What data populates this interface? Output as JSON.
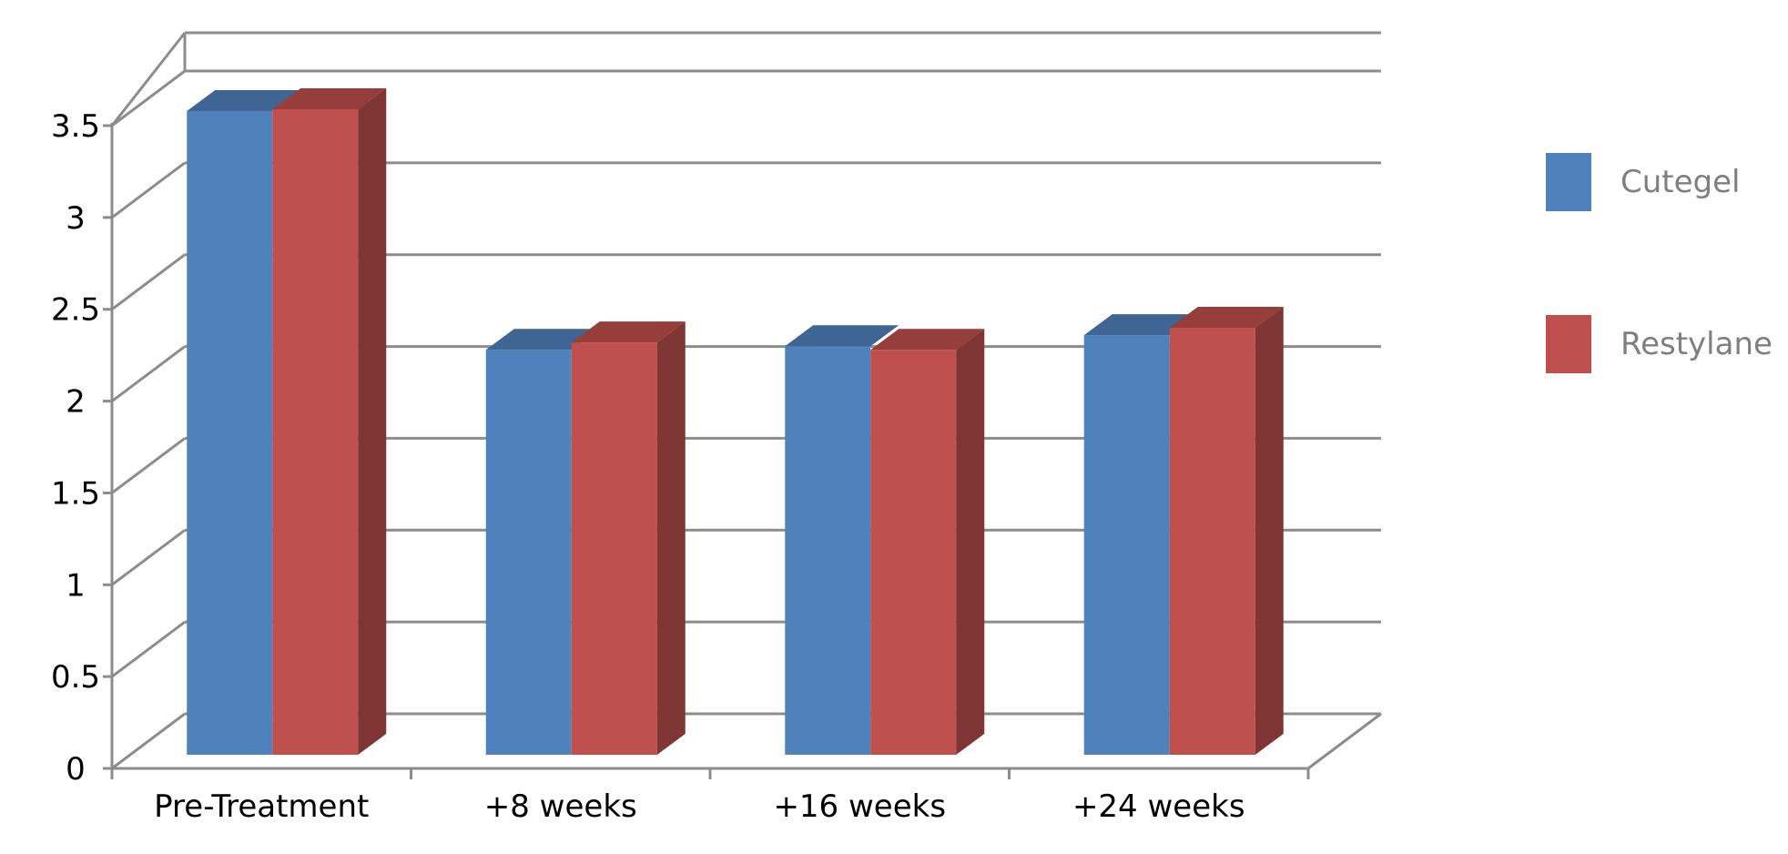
{
  "chart_data": {
    "type": "bar",
    "style": "3d-clustered-column",
    "categories": [
      "Pre-Treatment",
      "+8 weeks",
      "+16 weeks",
      "+24 weeks"
    ],
    "series": [
      {
        "name": "Cutegel",
        "values": [
          3.5,
          2.2,
          2.22,
          2.28
        ],
        "color": "#4f81bd"
      },
      {
        "name": "Restylane",
        "values": [
          3.51,
          2.24,
          2.2,
          2.32
        ],
        "color": "#c0504d"
      }
    ],
    "ylim": [
      0,
      3.5
    ],
    "yticks": [
      "0",
      "0.5",
      "1",
      "1.5",
      "2",
      "2.5",
      "3",
      "3.5"
    ],
    "grid": true,
    "legend_position": "right",
    "title": "",
    "xlabel": "",
    "ylabel": ""
  }
}
